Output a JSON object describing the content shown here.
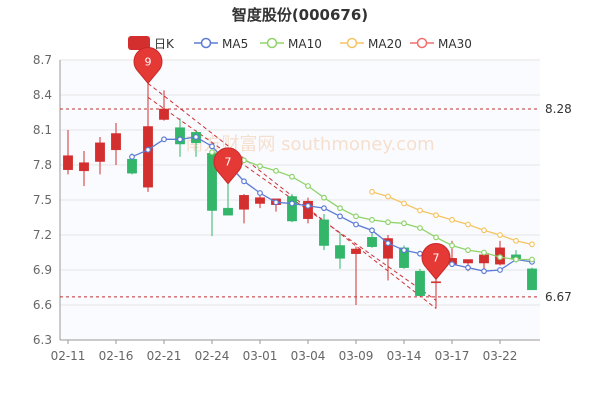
{
  "chart_data": {
    "type": "candlestick",
    "title": "智度股份(000676)",
    "watermark": "南方财富网 southmoney.com",
    "legend": [
      {
        "label": "日K",
        "color": "#d32f2f"
      },
      {
        "label": "MA5",
        "color": "#5b7bd5"
      },
      {
        "label": "MA10",
        "color": "#8fd36a"
      },
      {
        "label": "MA20",
        "color": "#f5c463"
      },
      {
        "label": "MA30",
        "color": "#f07070"
      }
    ],
    "colors": {
      "up": "#d32f2f",
      "down": "#33b56a",
      "grid": "#e6e6e6",
      "axis": "#666666",
      "trend": "#cc3333"
    },
    "ylim": [
      6.3,
      8.7
    ],
    "yticks": [
      "8.7",
      "8.4",
      "8.1",
      "7.8",
      "7.5",
      "7.2",
      "6.9",
      "6.6",
      "6.3"
    ],
    "xticks": [
      {
        "i": 0,
        "label": "02-11"
      },
      {
        "i": 3,
        "label": "02-16"
      },
      {
        "i": 6,
        "label": "02-21"
      },
      {
        "i": 9,
        "label": "02-24"
      },
      {
        "i": 12,
        "label": "03-01"
      },
      {
        "i": 15,
        "label": "03-04"
      },
      {
        "i": 18,
        "label": "03-09"
      },
      {
        "i": 21,
        "label": "03-14"
      },
      {
        "i": 24,
        "label": "03-17"
      },
      {
        "i": 27,
        "label": "03-22"
      }
    ],
    "candles": [
      {
        "o": 7.76,
        "h": 8.1,
        "l": 7.72,
        "c": 7.88
      },
      {
        "o": 7.75,
        "h": 7.92,
        "l": 7.62,
        "c": 7.82
      },
      {
        "o": 7.83,
        "h": 8.04,
        "l": 7.72,
        "c": 7.99
      },
      {
        "o": 7.93,
        "h": 8.16,
        "l": 7.8,
        "c": 8.07
      },
      {
        "o": 7.85,
        "h": 7.9,
        "l": 7.72,
        "c": 7.73
      },
      {
        "o": 7.61,
        "h": 8.5,
        "l": 7.57,
        "c": 8.13
      },
      {
        "o": 8.19,
        "h": 8.44,
        "l": 8.18,
        "c": 8.28
      },
      {
        "o": 8.12,
        "h": 8.2,
        "l": 7.87,
        "c": 7.98
      },
      {
        "o": 8.08,
        "h": 8.1,
        "l": 7.87,
        "c": 7.99
      },
      {
        "o": 7.9,
        "h": 7.92,
        "l": 7.19,
        "c": 7.41
      },
      {
        "o": 7.43,
        "h": 7.64,
        "l": 7.38,
        "c": 7.37
      },
      {
        "o": 7.42,
        "h": 7.55,
        "l": 7.3,
        "c": 7.54
      },
      {
        "o": 7.47,
        "h": 7.55,
        "l": 7.43,
        "c": 7.52
      },
      {
        "o": 7.46,
        "h": 7.51,
        "l": 7.4,
        "c": 7.51
      },
      {
        "o": 7.53,
        "h": 7.55,
        "l": 7.31,
        "c": 7.32
      },
      {
        "o": 7.34,
        "h": 7.52,
        "l": 7.3,
        "c": 7.49
      },
      {
        "o": 7.33,
        "h": 7.38,
        "l": 7.07,
        "c": 7.11
      },
      {
        "o": 7.11,
        "h": 7.22,
        "l": 6.91,
        "c": 7.0
      },
      {
        "o": 7.04,
        "h": 7.1,
        "l": 6.6,
        "c": 7.08
      },
      {
        "o": 7.18,
        "h": 7.25,
        "l": 7.09,
        "c": 7.1
      },
      {
        "o": 7.0,
        "h": 7.2,
        "l": 6.81,
        "c": 7.17
      },
      {
        "o": 7.09,
        "h": 7.11,
        "l": 6.91,
        "c": 6.92
      },
      {
        "o": 6.89,
        "h": 6.91,
        "l": 6.7,
        "c": 6.68
      },
      {
        "o": 6.79,
        "h": 6.82,
        "l": 6.57,
        "c": 6.8
      },
      {
        "o": 6.95,
        "h": 7.15,
        "l": 6.94,
        "c": 7.0
      },
      {
        "o": 6.96,
        "h": 6.98,
        "l": 6.89,
        "c": 6.99
      },
      {
        "o": 6.96,
        "h": 7.03,
        "l": 6.9,
        "c": 7.03
      },
      {
        "o": 6.95,
        "h": 7.15,
        "l": 6.94,
        "c": 7.09
      },
      {
        "o": 7.03,
        "h": 7.07,
        "l": 6.97,
        "c": 6.99
      },
      {
        "o": 6.91,
        "h": 6.92,
        "l": 6.74,
        "c": 6.73
      }
    ],
    "ma5": [
      null,
      null,
      null,
      null,
      7.87,
      7.93,
      8.02,
      8.02,
      8.04,
      7.96,
      7.81,
      7.66,
      7.56,
      7.48,
      7.47,
      7.45,
      7.43,
      7.36,
      7.29,
      7.24,
      7.13,
      7.07,
      7.04,
      6.99,
      6.95,
      6.92,
      6.89,
      6.9,
      6.99,
      6.97
    ],
    "ma10": [
      null,
      null,
      null,
      null,
      null,
      null,
      null,
      null,
      null,
      7.91,
      7.88,
      7.84,
      7.79,
      7.75,
      7.7,
      7.62,
      7.52,
      7.43,
      7.36,
      7.33,
      7.31,
      7.3,
      7.26,
      7.18,
      7.11,
      7.07,
      7.05,
      7.01,
      6.99,
      6.99
    ],
    "ma20": [
      null,
      null,
      null,
      null,
      null,
      null,
      null,
      null,
      null,
      null,
      null,
      null,
      null,
      null,
      null,
      null,
      null,
      null,
      null,
      7.57,
      7.53,
      7.47,
      7.41,
      7.37,
      7.33,
      7.29,
      7.24,
      7.2,
      7.15,
      7.12
    ],
    "ref_lines": [
      {
        "value": 8.28,
        "label": "8.28"
      },
      {
        "value": 6.67,
        "label": "6.67"
      }
    ],
    "markers": [
      {
        "i": 5,
        "value": 8.5,
        "label": "9"
      },
      {
        "i": 10,
        "value": 7.64,
        "label": "7"
      },
      {
        "i": 23,
        "value": 6.82,
        "label": "7"
      }
    ],
    "trend_lines": [
      {
        "from": {
          "i": 5,
          "value": 8.5
        },
        "to": {
          "i": 23,
          "value": 6.57
        }
      },
      {
        "from": {
          "i": 5,
          "value": 8.38
        },
        "to": {
          "i": 23,
          "value": 6.64
        }
      }
    ]
  }
}
